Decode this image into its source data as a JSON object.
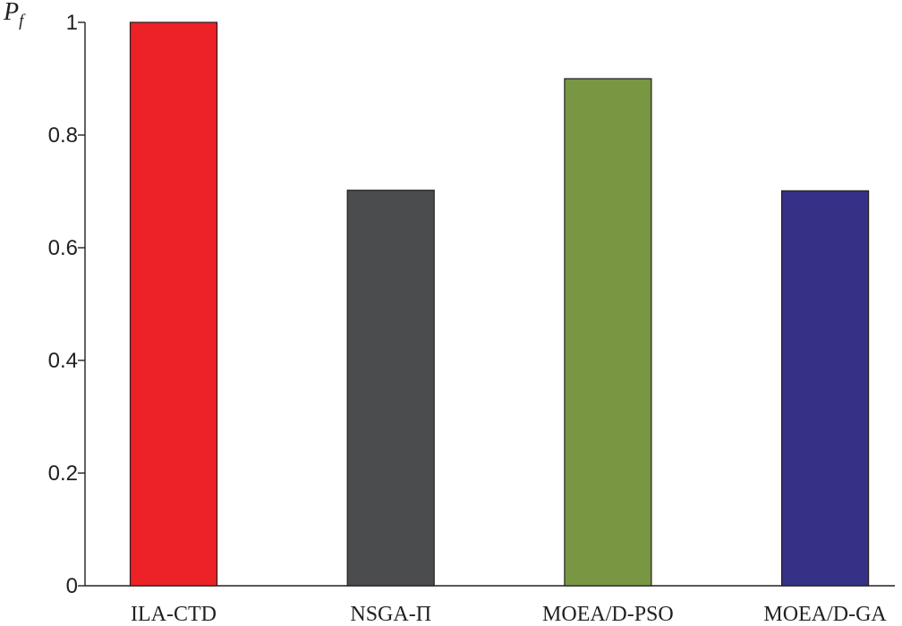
{
  "chart_data": {
    "type": "bar",
    "ylabel": "P",
    "ylabel_subscript": "f",
    "categories": [
      "ILA-CTD",
      "NSGA-Π",
      "MOEA/D-PSO",
      "MOEA/D-GA"
    ],
    "values": [
      1.0,
      0.702,
      0.9,
      0.701
    ],
    "colors": [
      "#ec2227",
      "#4b4c4e",
      "#799742",
      "#353186"
    ],
    "bar_outline_color": "#231f20",
    "ylim": [
      0,
      1
    ],
    "yticks": [
      0,
      0.2,
      0.4,
      0.6,
      0.8,
      1
    ],
    "ytick_labels": [
      "0",
      "0.2",
      "0.4",
      "0.6",
      "0.8",
      "1"
    ],
    "grid": false,
    "legend": "none"
  }
}
